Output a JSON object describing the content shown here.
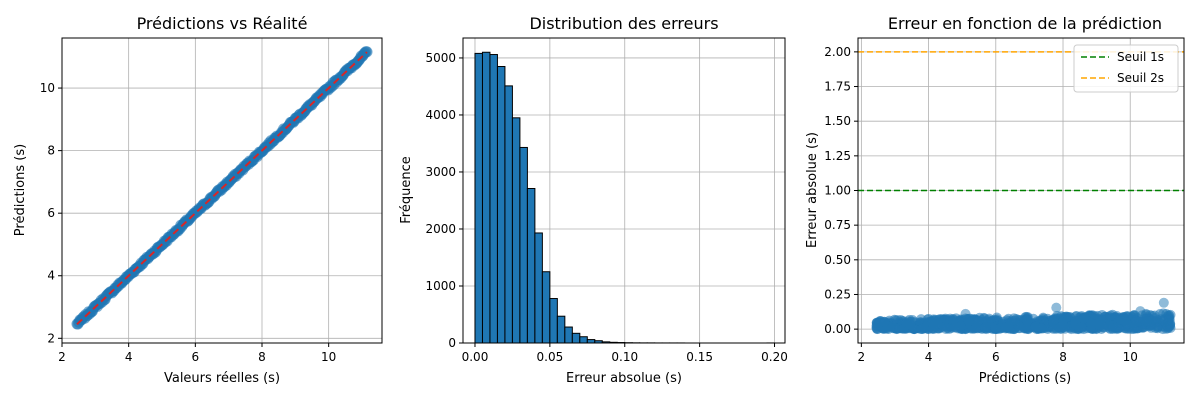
{
  "chart_data": [
    {
      "type": "scatter",
      "title": "Prédictions vs Réalité",
      "xlabel": "Valeurs réelles (s)",
      "ylabel": "Prédictions (s)",
      "xlim": [
        2.0,
        11.6
      ],
      "ylim": [
        1.85,
        11.6
      ],
      "xticks": [
        "2",
        "4",
        "6",
        "8",
        "10"
      ],
      "yticks": [
        "2",
        "4",
        "6",
        "8",
        "10"
      ],
      "grid": true,
      "point_color": "#1f77b4",
      "scatter_x_range": [
        2.45,
        11.15
      ],
      "reference_line": {
        "x": [
          2.45,
          11.15
        ],
        "y": [
          2.45,
          11.15
        ],
        "color": "#d62728",
        "style": "dashed"
      }
    },
    {
      "type": "bar",
      "subtype": "histogram",
      "title": "Distribution des erreurs",
      "xlabel": "Erreur absolue (s)",
      "ylabel": "Fréquence",
      "xlim": [
        -0.008,
        0.207
      ],
      "ylim": [
        0,
        5350
      ],
      "xticks": [
        "0.00",
        "0.05",
        "0.10",
        "0.15",
        "0.20"
      ],
      "yticks": [
        "0",
        "1000",
        "2000",
        "3000",
        "4000",
        "5000"
      ],
      "grid": true,
      "bar_color": "#1f77b4",
      "bin_width": 0.005,
      "bin_start": 0.0,
      "values": [
        5080,
        5100,
        5060,
        4850,
        4510,
        3950,
        3430,
        2710,
        1930,
        1250,
        780,
        470,
        280,
        170,
        110,
        60,
        40,
        20,
        12,
        8,
        5,
        3,
        2,
        2,
        1,
        1,
        1,
        1,
        0,
        0,
        0,
        0,
        0,
        0,
        0,
        0,
        0,
        0,
        0,
        1
      ]
    },
    {
      "type": "scatter",
      "title": "Erreur en fonction de la prédiction",
      "xlabel": "Prédictions (s)",
      "ylabel": "Erreur absolue (s)",
      "xlim": [
        1.9,
        11.6
      ],
      "ylim": [
        -0.1,
        2.1
      ],
      "xticks": [
        "2",
        "4",
        "6",
        "8",
        "10"
      ],
      "yticks": [
        "0.00",
        "0.25",
        "0.50",
        "0.75",
        "1.00",
        "1.25",
        "1.50",
        "1.75",
        "2.00"
      ],
      "grid": true,
      "point_color": "#1f77b4",
      "scatter_x_range": [
        2.45,
        11.2
      ],
      "thresholds": [
        {
          "name": "Seuil 1s",
          "value": 1.0,
          "color": "#008000"
        },
        {
          "name": "Seuil 2s",
          "value": 2.0,
          "color": "#ffa500"
        }
      ],
      "outliers": [
        {
          "x": 5.1,
          "y": 0.11
        },
        {
          "x": 7.8,
          "y": 0.155
        },
        {
          "x": 10.3,
          "y": 0.13
        },
        {
          "x": 11.0,
          "y": 0.19
        }
      ],
      "legend_position": "top-right"
    }
  ]
}
